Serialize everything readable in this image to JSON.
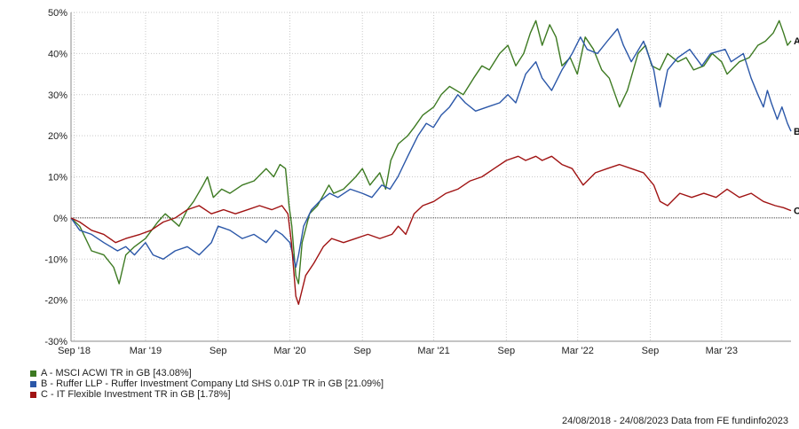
{
  "chart_data": {
    "type": "line",
    "ylabel": "",
    "xlabel": "",
    "yticks": [
      50,
      40,
      30,
      20,
      10,
      0,
      -10,
      -20,
      -30
    ],
    "ytick_labels": [
      "50%",
      "40%",
      "30%",
      "20%",
      "10%",
      "0%",
      "-10%",
      "-20%",
      "-30%"
    ],
    "ylim": [
      -30,
      50
    ],
    "xlim": [
      "2018-08-24",
      "2023-08-24"
    ],
    "xticks": [
      "2018-09-01",
      "2019-03-01",
      "2019-09-01",
      "2020-03-01",
      "2020-09-01",
      "2021-03-01",
      "2021-09-01",
      "2022-03-01",
      "2022-09-01",
      "2023-03-01"
    ],
    "xtick_labels": [
      "Sep '18",
      "Mar '19",
      "Sep",
      "Mar '20",
      "Sep",
      "Mar '21",
      "Sep",
      "Mar '22",
      "Sep",
      "Mar '23"
    ],
    "grid": true,
    "legend_position": "bottom-left",
    "series": [
      {
        "letter": "A",
        "legend": "A - MSCI ACWI TR in GB [43.08%]",
        "color": "#3d7a22",
        "points": [
          [
            "2018-08-24",
            0
          ],
          [
            "2018-09-15",
            -2
          ],
          [
            "2018-10-15",
            -8
          ],
          [
            "2018-11-15",
            -9
          ],
          [
            "2018-12-10",
            -12
          ],
          [
            "2018-12-24",
            -16
          ],
          [
            "2019-01-10",
            -9
          ],
          [
            "2019-02-01",
            -7
          ],
          [
            "2019-03-01",
            -5
          ],
          [
            "2019-04-01",
            -1
          ],
          [
            "2019-04-20",
            1
          ],
          [
            "2019-05-25",
            -2
          ],
          [
            "2019-06-15",
            2
          ],
          [
            "2019-07-01",
            4
          ],
          [
            "2019-07-25",
            8
          ],
          [
            "2019-08-05",
            10
          ],
          [
            "2019-08-20",
            5
          ],
          [
            "2019-09-10",
            7
          ],
          [
            "2019-10-01",
            6
          ],
          [
            "2019-11-01",
            8
          ],
          [
            "2019-12-01",
            9
          ],
          [
            "2020-01-01",
            12
          ],
          [
            "2020-01-20",
            10
          ],
          [
            "2020-02-05",
            13
          ],
          [
            "2020-02-19",
            12
          ],
          [
            "2020-02-28",
            3
          ],
          [
            "2020-03-06",
            -2
          ],
          [
            "2020-03-16",
            -14
          ],
          [
            "2020-03-23",
            -16
          ],
          [
            "2020-04-01",
            -6
          ],
          [
            "2020-04-20",
            1
          ],
          [
            "2020-05-10",
            3
          ],
          [
            "2020-06-08",
            8
          ],
          [
            "2020-06-20",
            6
          ],
          [
            "2020-07-15",
            7
          ],
          [
            "2020-08-15",
            10
          ],
          [
            "2020-09-01",
            12
          ],
          [
            "2020-09-20",
            8
          ],
          [
            "2020-10-15",
            11
          ],
          [
            "2020-10-30",
            7
          ],
          [
            "2020-11-12",
            14
          ],
          [
            "2020-12-01",
            18
          ],
          [
            "2020-12-25",
            20
          ],
          [
            "2021-01-10",
            22
          ],
          [
            "2021-02-01",
            25
          ],
          [
            "2021-03-01",
            27
          ],
          [
            "2021-03-20",
            30
          ],
          [
            "2021-04-10",
            32
          ],
          [
            "2021-05-15",
            30
          ],
          [
            "2021-06-10",
            34
          ],
          [
            "2021-07-01",
            37
          ],
          [
            "2021-07-20",
            36
          ],
          [
            "2021-08-15",
            40
          ],
          [
            "2021-09-05",
            42
          ],
          [
            "2021-09-25",
            37
          ],
          [
            "2021-10-15",
            40
          ],
          [
            "2021-11-01",
            45
          ],
          [
            "2021-11-15",
            48
          ],
          [
            "2021-12-01",
            42
          ],
          [
            "2021-12-20",
            47
          ],
          [
            "2022-01-05",
            44
          ],
          [
            "2022-01-20",
            37
          ],
          [
            "2022-02-10",
            39
          ],
          [
            "2022-02-28",
            35
          ],
          [
            "2022-03-20",
            44
          ],
          [
            "2022-04-10",
            41
          ],
          [
            "2022-05-01",
            36
          ],
          [
            "2022-05-20",
            34
          ],
          [
            "2022-06-15",
            27
          ],
          [
            "2022-07-05",
            31
          ],
          [
            "2022-08-01",
            40
          ],
          [
            "2022-08-20",
            42
          ],
          [
            "2022-09-05",
            37
          ],
          [
            "2022-09-25",
            36
          ],
          [
            "2022-10-15",
            40
          ],
          [
            "2022-11-10",
            38
          ],
          [
            "2022-12-01",
            39
          ],
          [
            "2022-12-20",
            36
          ],
          [
            "2023-01-15",
            37
          ],
          [
            "2023-02-05",
            40
          ],
          [
            "2023-03-01",
            38
          ],
          [
            "2023-03-15",
            35
          ],
          [
            "2023-04-15",
            38
          ],
          [
            "2023-05-10",
            39
          ],
          [
            "2023-06-01",
            42
          ],
          [
            "2023-06-20",
            43
          ],
          [
            "2023-07-10",
            45
          ],
          [
            "2023-07-25",
            48
          ],
          [
            "2023-08-05",
            45
          ],
          [
            "2023-08-15",
            42
          ],
          [
            "2023-08-24",
            43.08
          ]
        ]
      },
      {
        "letter": "B",
        "legend": "B - Ruffer LLP - Ruffer Investment Company Ltd SHS 0.01P TR in GB [21.09%]",
        "color": "#2b57a8",
        "points": [
          [
            "2018-08-24",
            0
          ],
          [
            "2018-09-15",
            -3
          ],
          [
            "2018-10-15",
            -4
          ],
          [
            "2018-11-15",
            -6
          ],
          [
            "2018-12-20",
            -8
          ],
          [
            "2019-01-10",
            -7
          ],
          [
            "2019-02-01",
            -9
          ],
          [
            "2019-03-01",
            -6
          ],
          [
            "2019-03-20",
            -9
          ],
          [
            "2019-04-15",
            -10
          ],
          [
            "2019-05-15",
            -8
          ],
          [
            "2019-06-15",
            -7
          ],
          [
            "2019-07-15",
            -9
          ],
          [
            "2019-08-15",
            -6
          ],
          [
            "2019-09-01",
            -2
          ],
          [
            "2019-10-01",
            -3
          ],
          [
            "2019-11-01",
            -5
          ],
          [
            "2019-12-01",
            -4
          ],
          [
            "2020-01-01",
            -6
          ],
          [
            "2020-01-25",
            -3
          ],
          [
            "2020-02-10",
            -4
          ],
          [
            "2020-03-01",
            -6
          ],
          [
            "2020-03-16",
            -12
          ],
          [
            "2020-03-23",
            -9
          ],
          [
            "2020-04-05",
            -2
          ],
          [
            "2020-04-25",
            2
          ],
          [
            "2020-05-15",
            4
          ],
          [
            "2020-06-10",
            6
          ],
          [
            "2020-07-01",
            5
          ],
          [
            "2020-08-01",
            7
          ],
          [
            "2020-09-01",
            6
          ],
          [
            "2020-09-25",
            5
          ],
          [
            "2020-10-20",
            8
          ],
          [
            "2020-11-10",
            7
          ],
          [
            "2020-11-30",
            10
          ],
          [
            "2020-12-25",
            15
          ],
          [
            "2021-01-20",
            20
          ],
          [
            "2021-02-10",
            23
          ],
          [
            "2021-02-28",
            22
          ],
          [
            "2021-03-20",
            25
          ],
          [
            "2021-04-10",
            27
          ],
          [
            "2021-05-01",
            30
          ],
          [
            "2021-05-20",
            28
          ],
          [
            "2021-06-15",
            26
          ],
          [
            "2021-07-15",
            27
          ],
          [
            "2021-08-15",
            28
          ],
          [
            "2021-09-05",
            30
          ],
          [
            "2021-09-25",
            28
          ],
          [
            "2021-10-20",
            35
          ],
          [
            "2021-11-15",
            38
          ],
          [
            "2021-12-01",
            34
          ],
          [
            "2021-12-25",
            31
          ],
          [
            "2022-01-20",
            36
          ],
          [
            "2022-02-15",
            40
          ],
          [
            "2022-03-08",
            44
          ],
          [
            "2022-03-25",
            41
          ],
          [
            "2022-04-20",
            40
          ],
          [
            "2022-05-15",
            43
          ],
          [
            "2022-06-10",
            46
          ],
          [
            "2022-06-25",
            42
          ],
          [
            "2022-07-15",
            38
          ],
          [
            "2022-08-15",
            43
          ],
          [
            "2022-09-10",
            36
          ],
          [
            "2022-09-26",
            27
          ],
          [
            "2022-10-15",
            36
          ],
          [
            "2022-11-10",
            39
          ],
          [
            "2022-12-10",
            41
          ],
          [
            "2023-01-10",
            37
          ],
          [
            "2023-02-01",
            40
          ],
          [
            "2023-03-10",
            41
          ],
          [
            "2023-03-25",
            38
          ],
          [
            "2023-04-25",
            40
          ],
          [
            "2023-05-15",
            34
          ],
          [
            "2023-06-01",
            30
          ],
          [
            "2023-06-15",
            27
          ],
          [
            "2023-06-25",
            31
          ],
          [
            "2023-07-05",
            28
          ],
          [
            "2023-07-20",
            24
          ],
          [
            "2023-08-01",
            27
          ],
          [
            "2023-08-15",
            23
          ],
          [
            "2023-08-24",
            21.09
          ]
        ]
      },
      {
        "letter": "C",
        "legend": "C - IT Flexible Investment TR in GB [1.78%]",
        "color": "#a01313",
        "points": [
          [
            "2018-08-24",
            0
          ],
          [
            "2018-09-15",
            -1
          ],
          [
            "2018-10-15",
            -3
          ],
          [
            "2018-11-15",
            -4
          ],
          [
            "2018-12-15",
            -6
          ],
          [
            "2019-01-10",
            -5
          ],
          [
            "2019-02-15",
            -4
          ],
          [
            "2019-03-15",
            -3
          ],
          [
            "2019-04-15",
            -1
          ],
          [
            "2019-05-15",
            0
          ],
          [
            "2019-06-15",
            2
          ],
          [
            "2019-07-15",
            3
          ],
          [
            "2019-08-15",
            1
          ],
          [
            "2019-09-15",
            2
          ],
          [
            "2019-10-15",
            1
          ],
          [
            "2019-11-15",
            2
          ],
          [
            "2019-12-15",
            3
          ],
          [
            "2020-01-15",
            2
          ],
          [
            "2020-02-10",
            3
          ],
          [
            "2020-02-25",
            1
          ],
          [
            "2020-03-05",
            -6
          ],
          [
            "2020-03-16",
            -19
          ],
          [
            "2020-03-23",
            -21
          ],
          [
            "2020-04-10",
            -14
          ],
          [
            "2020-05-01",
            -11
          ],
          [
            "2020-05-25",
            -7
          ],
          [
            "2020-06-15",
            -5
          ],
          [
            "2020-07-15",
            -6
          ],
          [
            "2020-08-15",
            -5
          ],
          [
            "2020-09-15",
            -4
          ],
          [
            "2020-10-15",
            -5
          ],
          [
            "2020-11-15",
            -4
          ],
          [
            "2020-12-01",
            -2
          ],
          [
            "2020-12-20",
            -4
          ],
          [
            "2021-01-10",
            1
          ],
          [
            "2021-02-01",
            3
          ],
          [
            "2021-03-01",
            4
          ],
          [
            "2021-04-01",
            6
          ],
          [
            "2021-05-01",
            7
          ],
          [
            "2021-06-01",
            9
          ],
          [
            "2021-07-01",
            10
          ],
          [
            "2021-08-01",
            12
          ],
          [
            "2021-09-01",
            14
          ],
          [
            "2021-10-01",
            15
          ],
          [
            "2021-10-20",
            14
          ],
          [
            "2021-11-15",
            15
          ],
          [
            "2021-12-01",
            14
          ],
          [
            "2021-12-25",
            15
          ],
          [
            "2022-01-20",
            13
          ],
          [
            "2022-02-15",
            12
          ],
          [
            "2022-03-01",
            10
          ],
          [
            "2022-03-15",
            8
          ],
          [
            "2022-04-15",
            11
          ],
          [
            "2022-05-15",
            12
          ],
          [
            "2022-06-15",
            13
          ],
          [
            "2022-07-15",
            12
          ],
          [
            "2022-08-15",
            11
          ],
          [
            "2022-09-10",
            8
          ],
          [
            "2022-09-26",
            4
          ],
          [
            "2022-10-15",
            3
          ],
          [
            "2022-11-15",
            6
          ],
          [
            "2022-12-15",
            5
          ],
          [
            "2023-01-15",
            6
          ],
          [
            "2023-02-15",
            5
          ],
          [
            "2023-03-15",
            7
          ],
          [
            "2023-04-15",
            5
          ],
          [
            "2023-05-15",
            6
          ],
          [
            "2023-06-15",
            4
          ],
          [
            "2023-07-15",
            3
          ],
          [
            "2023-08-05",
            2.5
          ],
          [
            "2023-08-24",
            1.78
          ]
        ]
      }
    ]
  },
  "footer": "24/08/2018 - 24/08/2023 Data from FE fundinfo2023"
}
